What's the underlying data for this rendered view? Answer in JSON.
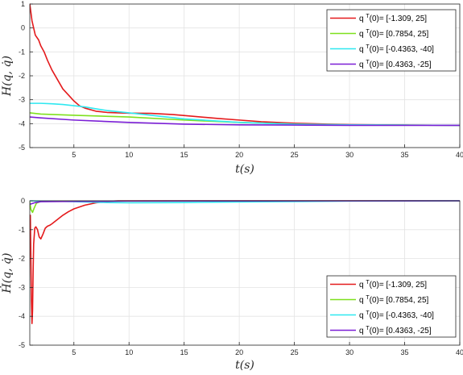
{
  "chart_data": [
    {
      "type": "line",
      "title": "",
      "xlabel": "t(s)",
      "ylabel": "H(q, q̇)",
      "xlim": [
        1,
        40
      ],
      "ylim": [
        -5,
        1
      ],
      "xticks": [
        5,
        10,
        15,
        20,
        25,
        30,
        35,
        40
      ],
      "yticks": [
        -5,
        -4,
        -3,
        -2,
        -1,
        0,
        1
      ],
      "grid": true,
      "legend_position": "top-right",
      "series": [
        {
          "name": "q^T(0)= [-1.309, 25]",
          "label_base": "q",
          "label_sup": "T",
          "label_rest": "(0)= [-1.309, 25]",
          "color": "#e41a1c",
          "x": [
            1,
            1.2,
            1.5,
            1.8,
            2,
            2.3,
            2.6,
            3,
            3.5,
            4,
            4.5,
            5,
            5.5,
            6,
            7,
            8,
            9,
            10,
            12,
            14,
            16,
            18,
            20,
            22,
            25,
            28,
            30,
            35,
            40
          ],
          "y": [
            1.0,
            0.3,
            -0.3,
            -0.5,
            -0.75,
            -1.0,
            -1.35,
            -1.75,
            -2.15,
            -2.55,
            -2.8,
            -3.05,
            -3.25,
            -3.35,
            -3.48,
            -3.53,
            -3.55,
            -3.56,
            -3.57,
            -3.62,
            -3.7,
            -3.78,
            -3.85,
            -3.92,
            -3.98,
            -4.02,
            -4.04,
            -4.06,
            -4.07
          ]
        },
        {
          "name": "q^T(0)= [0.7854, 25]",
          "label_base": "q",
          "label_sup": "T",
          "label_rest": "(0)= [0.7854, 25]",
          "color": "#7fe01e",
          "x": [
            1,
            2,
            5,
            10,
            15,
            20,
            25,
            30,
            35,
            40
          ],
          "y": [
            -3.55,
            -3.6,
            -3.65,
            -3.72,
            -3.85,
            -3.95,
            -4.02,
            -4.05,
            -4.06,
            -4.07
          ]
        },
        {
          "name": "q^T(0)= [-0.4363, -40]",
          "label_base": "q",
          "label_sup": "T",
          "label_rest": "(0)= [-0.4363, -40]",
          "color": "#2fe8f0",
          "x": [
            1,
            2,
            3,
            4,
            5,
            6,
            7,
            8,
            10,
            12,
            15,
            20,
            25,
            30,
            35,
            40
          ],
          "y": [
            -3.15,
            -3.15,
            -3.17,
            -3.2,
            -3.25,
            -3.3,
            -3.38,
            -3.45,
            -3.55,
            -3.65,
            -3.8,
            -3.95,
            -4.02,
            -4.05,
            -4.06,
            -4.07
          ]
        },
        {
          "name": "q^T(0)= [0.4363, -25]",
          "label_base": "q",
          "label_sup": "T",
          "label_rest": "(0)= [0.4363, -25]",
          "color": "#7b1fd6",
          "x": [
            1,
            2,
            5,
            10,
            15,
            20,
            25,
            30,
            35,
            40
          ],
          "y": [
            -3.72,
            -3.76,
            -3.85,
            -3.95,
            -4.02,
            -4.05,
            -4.06,
            -4.07,
            -4.07,
            -4.07
          ]
        }
      ]
    },
    {
      "type": "line",
      "title": "",
      "xlabel": "t(s)",
      "ylabel": "Ḣ(q, q̇)",
      "xlim": [
        1,
        40
      ],
      "ylim": [
        -5,
        0
      ],
      "xticks": [
        5,
        10,
        15,
        20,
        25,
        30,
        35,
        40
      ],
      "yticks": [
        -5,
        -4,
        -3,
        -2,
        -1,
        0
      ],
      "grid": true,
      "legend_position": "bottom-right",
      "series": [
        {
          "name": "q^T(0)= [-1.309, 25]",
          "label_base": "q",
          "label_sup": "T",
          "label_rest": "(0)= [-1.309, 25]",
          "color": "#e41a1c",
          "x": [
            1,
            1.05,
            1.1,
            1.15,
            1.2,
            1.25,
            1.3,
            1.35,
            1.45,
            1.55,
            1.7,
            1.85,
            2.0,
            2.2,
            2.4,
            2.6,
            2.8,
            3.0,
            3.5,
            4,
            4.5,
            5,
            6,
            7,
            8,
            9,
            10,
            12,
            15,
            20,
            40
          ],
          "y": [
            -0.6,
            -0.5,
            -2.0,
            -3.5,
            -4.25,
            -3.8,
            -2.5,
            -1.5,
            -0.95,
            -0.9,
            -1.0,
            -1.25,
            -1.32,
            -1.15,
            -0.95,
            -0.88,
            -0.85,
            -0.8,
            -0.65,
            -0.5,
            -0.38,
            -0.28,
            -0.15,
            -0.07,
            -0.02,
            0.0,
            0.0,
            0.0,
            0.0,
            0.0,
            0.0
          ]
        },
        {
          "name": "q^T(0)= [0.7854, 25]",
          "label_base": "q",
          "label_sup": "T",
          "label_rest": "(0)= [0.7854, 25]",
          "color": "#7fe01e",
          "x": [
            1,
            1.1,
            1.25,
            1.4,
            1.6,
            2.0,
            3,
            40
          ],
          "y": [
            -0.05,
            -0.3,
            -0.4,
            -0.25,
            -0.08,
            -0.02,
            -0.01,
            0.0
          ]
        },
        {
          "name": "q^T(0)= [-0.4363, -40]",
          "label_base": "q",
          "label_sup": "T",
          "label_rest": "(0)= [-0.4363, -40]",
          "color": "#2fe8f0",
          "x": [
            1,
            2,
            4,
            6,
            8,
            10,
            15,
            20,
            30,
            40
          ],
          "y": [
            0.0,
            -0.01,
            -0.02,
            -0.04,
            -0.06,
            -0.07,
            -0.06,
            -0.04,
            -0.01,
            0.0
          ]
        },
        {
          "name": "q^T(0)= [0.4363, -25]",
          "label_base": "q",
          "label_sup": "T",
          "label_rest": "(0)= [0.4363, -25]",
          "color": "#7b1fd6",
          "x": [
            1,
            1.5,
            2,
            5,
            10,
            20,
            40
          ],
          "y": [
            -0.12,
            -0.06,
            -0.03,
            -0.02,
            -0.01,
            -0.005,
            0.0
          ]
        }
      ]
    }
  ]
}
